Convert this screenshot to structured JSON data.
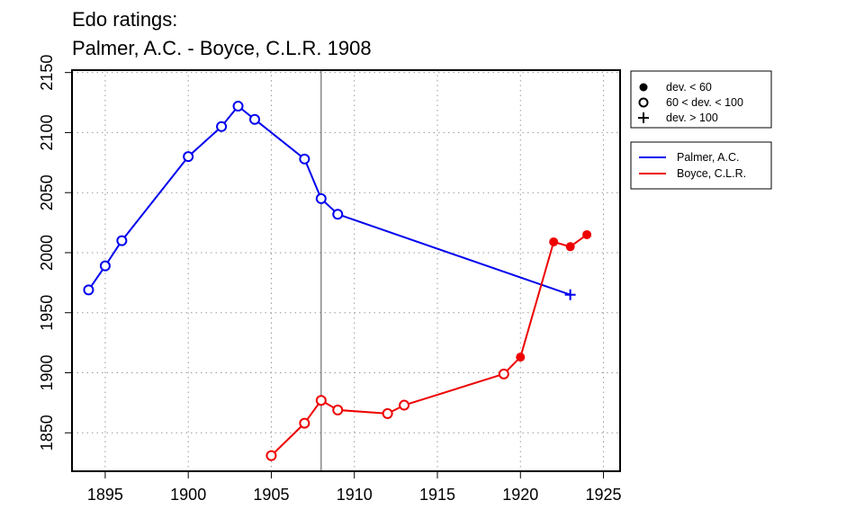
{
  "chart_data": {
    "type": "line",
    "title": [
      "Edo ratings:",
      "Palmer, A.C. - Boyce, C.L.R. 1908"
    ],
    "xlabel": "",
    "ylabel": "",
    "xlim": [
      1893,
      1926
    ],
    "ylim": [
      1818,
      2152
    ],
    "x_ticks": [
      1895,
      1900,
      1905,
      1910,
      1915,
      1920,
      1925
    ],
    "y_ticks": [
      1850,
      1900,
      1950,
      2000,
      2050,
      2100,
      2150
    ],
    "grid": true,
    "reference_line_x": 1908,
    "legend_markers": [
      {
        "label": "dev. < 60",
        "marker": "filled-circle"
      },
      {
        "label": "60 < dev. < 100",
        "marker": "open-circle"
      },
      {
        "label": "dev. > 100",
        "marker": "plus"
      }
    ],
    "series": [
      {
        "name": "Palmer, A.C.",
        "color": "#0000ee",
        "points": [
          {
            "x": 1894,
            "y": 1969,
            "marker": "open-circle"
          },
          {
            "x": 1895,
            "y": 1989,
            "marker": "open-circle"
          },
          {
            "x": 1896,
            "y": 2010,
            "marker": "open-circle"
          },
          {
            "x": 1900,
            "y": 2080,
            "marker": "open-circle"
          },
          {
            "x": 1902,
            "y": 2105,
            "marker": "open-circle"
          },
          {
            "x": 1903,
            "y": 2122,
            "marker": "open-circle"
          },
          {
            "x": 1904,
            "y": 2111,
            "marker": "open-circle"
          },
          {
            "x": 1907,
            "y": 2078,
            "marker": "open-circle"
          },
          {
            "x": 1908,
            "y": 2045,
            "marker": "open-circle"
          },
          {
            "x": 1909,
            "y": 2032,
            "marker": "open-circle"
          },
          {
            "x": 1923,
            "y": 1965,
            "marker": "plus"
          }
        ]
      },
      {
        "name": "Boyce, C.L.R.",
        "color": "#ee0000",
        "points": [
          {
            "x": 1905,
            "y": 1831,
            "marker": "open-circle"
          },
          {
            "x": 1907,
            "y": 1858,
            "marker": "open-circle"
          },
          {
            "x": 1908,
            "y": 1877,
            "marker": "open-circle"
          },
          {
            "x": 1909,
            "y": 1869,
            "marker": "open-circle"
          },
          {
            "x": 1912,
            "y": 1866,
            "marker": "open-circle"
          },
          {
            "x": 1913,
            "y": 1873,
            "marker": "open-circle"
          },
          {
            "x": 1919,
            "y": 1899,
            "marker": "open-circle"
          },
          {
            "x": 1920,
            "y": 1913,
            "marker": "filled-circle"
          },
          {
            "x": 1922,
            "y": 2009,
            "marker": "filled-circle"
          },
          {
            "x": 1923,
            "y": 2005,
            "marker": "filled-circle"
          },
          {
            "x": 1924,
            "y": 2015,
            "marker": "filled-circle"
          }
        ]
      }
    ]
  }
}
